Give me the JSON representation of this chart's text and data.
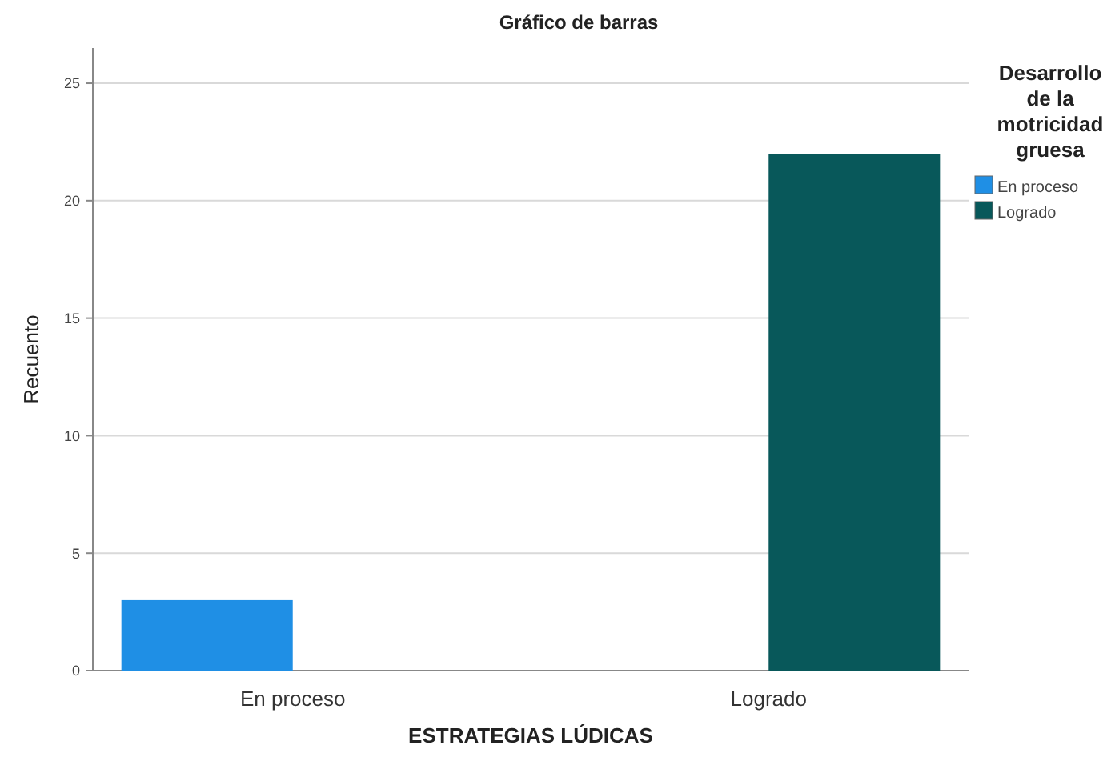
{
  "chart_data": {
    "type": "bar",
    "title": "Gráfico de barras",
    "xlabel": "ESTRATEGIAS LÚDICAS",
    "ylabel": "Recuento",
    "legend_title": "Desarrollo de la motricidad gruesa",
    "categories": [
      "En proceso",
      "Logrado"
    ],
    "series": [
      {
        "name": "En proceso",
        "color": "#1f8fe5",
        "values": [
          3,
          null
        ]
      },
      {
        "name": "Logrado",
        "color": "#08585a",
        "values": [
          null,
          22
        ]
      }
    ],
    "ylim": [
      0,
      26.5
    ],
    "yticks": [
      0,
      5,
      10,
      15,
      20,
      25
    ],
    "grid": "y",
    "legend": "right"
  }
}
